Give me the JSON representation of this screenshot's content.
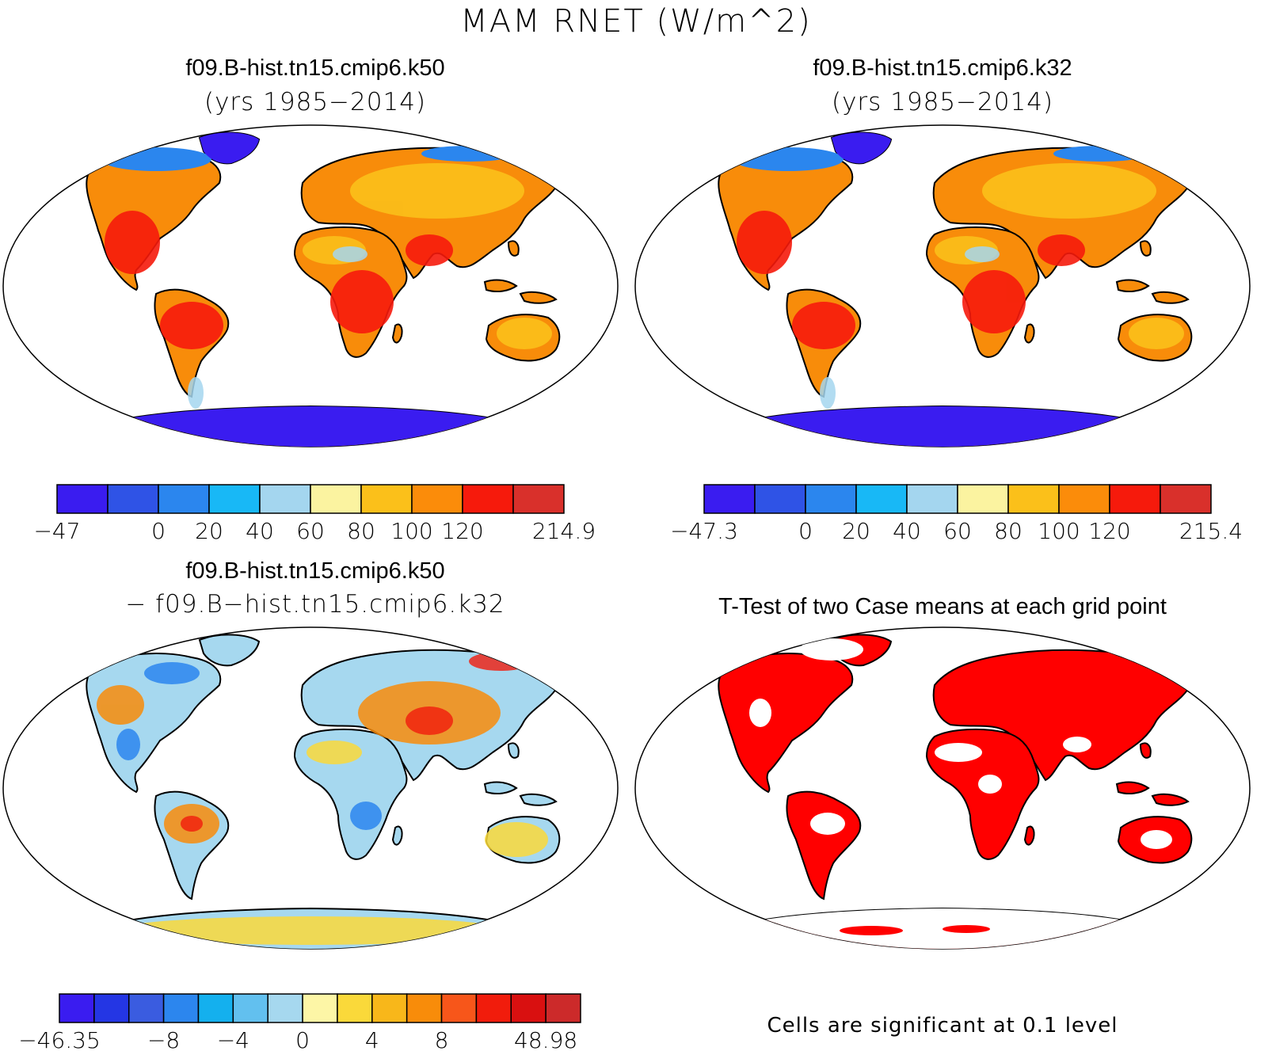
{
  "figure": {
    "main_title": "MAM RNET (W/m^2)"
  },
  "panels": [
    {
      "id": "case1",
      "title": "f09.B-hist.tn15.cmip6.k50",
      "subtitle": "(yrs 1985−2014)",
      "colorbar": {
        "colors": [
          "#3a1cf0",
          "#2f53e6",
          "#2b86ee",
          "#18b8f6",
          "#a4d6ef",
          "#fbf3a0",
          "#fbc01a",
          "#fb8c0a",
          "#f61a0c",
          "#d9302b"
        ],
        "labels": [
          "−47",
          "",
          "0",
          "20",
          "40",
          "60",
          "80",
          "100",
          "120",
          "",
          "214.9"
        ]
      }
    },
    {
      "id": "case2",
      "title": "f09.B-hist.tn15.cmip6.k32",
      "subtitle": "(yrs 1985−2014)",
      "colorbar": {
        "colors": [
          "#3a1cf0",
          "#2f53e6",
          "#2b86ee",
          "#18b8f6",
          "#a4d6ef",
          "#fbf3a0",
          "#fbc01a",
          "#fb8c0a",
          "#f61a0c",
          "#d9302b"
        ],
        "labels": [
          "−47.3",
          "",
          "0",
          "20",
          "40",
          "60",
          "80",
          "100",
          "120",
          "",
          "215.4"
        ]
      }
    },
    {
      "id": "difference",
      "title": "f09.B-hist.tn15.cmip6.k50",
      "subtitle": "− f09.B−hist.tn15.cmip6.k32",
      "colorbar": {
        "colors": [
          "#3a1cf0",
          "#2436e4",
          "#3a5ce0",
          "#2c86ee",
          "#14b0ee",
          "#62c0ef",
          "#a6d8ef",
          "#fdf6a6",
          "#fad93a",
          "#f8b71a",
          "#f88c0a",
          "#f7561a",
          "#f11c0c",
          "#d91010",
          "#cc2a2a"
        ],
        "labels": [
          "−46.35",
          "",
          "",
          "−8",
          "",
          "−4",
          "",
          "0",
          "",
          "4",
          "",
          "8",
          "",
          "",
          "48.98"
        ]
      }
    },
    {
      "id": "ttest",
      "title": "T-Test of two Case means at each grid point",
      "note": "Cells are significant at 0.1 level",
      "colors": [
        "#ff0000"
      ]
    }
  ]
}
